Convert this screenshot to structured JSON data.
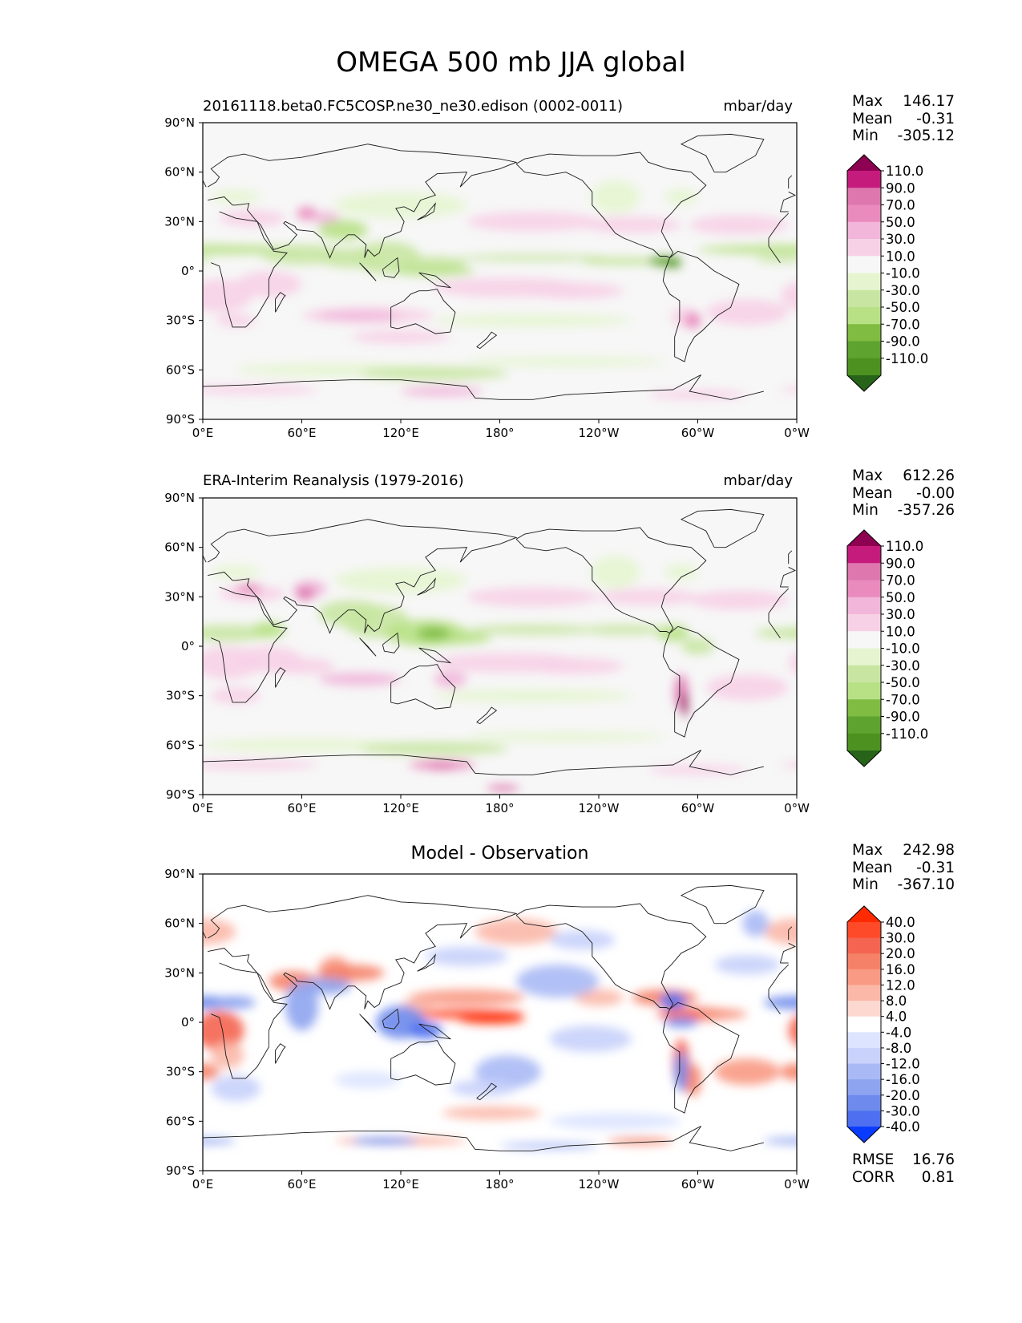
{
  "figure": {
    "title": "OMEGA 500 mb JJA global"
  },
  "chart_data": [
    {
      "type": "heatmap",
      "subtype": "global-map-contour",
      "left_title": "20161118.beta0.FC5COSP.ne30_ne30.edison (0002-0011)",
      "right_title": "mbar/day",
      "xticks": [
        "0°E",
        "60°E",
        "120°E",
        "180°",
        "120°W",
        "60°W",
        "0°W"
      ],
      "yticks": [
        "90°N",
        "60°N",
        "30°N",
        "0°",
        "30°S",
        "60°S",
        "90°S"
      ],
      "stats": [
        [
          "Max",
          "146.17"
        ],
        [
          "Mean",
          "-0.31"
        ],
        [
          "Min",
          "-305.12"
        ]
      ],
      "colorbar": {
        "levels": [
          "110.0",
          "90.0",
          "70.0",
          "50.0",
          "30.0",
          "10.0",
          "-10.0",
          "-30.0",
          "-50.0",
          "-70.0",
          "-90.0",
          "-110.0"
        ],
        "colors": [
          "#8e0152",
          "#c51b7d",
          "#de77ae",
          "#e98bbd",
          "#f1b6da",
          "#f7d2e7",
          "#f7f7f7",
          "#e6f5d0",
          "#c8e6a2",
          "#b8e186",
          "#7fbc41",
          "#5ea22f",
          "#4d9221",
          "#276419"
        ]
      }
    },
    {
      "type": "heatmap",
      "subtype": "global-map-contour",
      "left_title": "ERA-Interim Reanalysis (1979-2016)",
      "right_title": "mbar/day",
      "xticks": [
        "0°E",
        "60°E",
        "120°E",
        "180°",
        "120°W",
        "60°W",
        "0°W"
      ],
      "yticks": [
        "90°N",
        "60°N",
        "30°N",
        "0°",
        "30°S",
        "60°S",
        "90°S"
      ],
      "stats": [
        [
          "Max",
          "612.26"
        ],
        [
          "Mean",
          "-0.00"
        ],
        [
          "Min",
          "-357.26"
        ]
      ],
      "colorbar": {
        "levels": [
          "110.0",
          "90.0",
          "70.0",
          "50.0",
          "30.0",
          "10.0",
          "-10.0",
          "-30.0",
          "-50.0",
          "-70.0",
          "-90.0",
          "-110.0"
        ],
        "colors": [
          "#8e0152",
          "#c51b7d",
          "#de77ae",
          "#e98bbd",
          "#f1b6da",
          "#f7d2e7",
          "#f7f7f7",
          "#e6f5d0",
          "#c8e6a2",
          "#b8e186",
          "#7fbc41",
          "#5ea22f",
          "#4d9221",
          "#276419"
        ]
      }
    },
    {
      "type": "heatmap",
      "subtype": "global-map-contour",
      "center_title": "Model - Observation",
      "xticks": [
        "0°E",
        "60°E",
        "120°E",
        "180°",
        "120°W",
        "60°W",
        "0°W"
      ],
      "yticks": [
        "90°N",
        "60°N",
        "30°N",
        "0°",
        "30°S",
        "60°S",
        "90°S"
      ],
      "stats": [
        [
          "Max",
          "242.98"
        ],
        [
          "Mean",
          "-0.31"
        ],
        [
          "Min",
          "-367.10"
        ]
      ],
      "extra_stats": [
        [
          "RMSE",
          "16.76"
        ],
        [
          "CORR",
          "0.81"
        ]
      ],
      "colorbar": {
        "levels": [
          "40.0",
          "30.0",
          "20.0",
          "16.0",
          "12.0",
          "8.0",
          "4.0",
          "-4.0",
          "-8.0",
          "-12.0",
          "-16.0",
          "-20.0",
          "-30.0",
          "-40.0"
        ],
        "colors": [
          "#ff2a00",
          "#ff4a2a",
          "#f46450",
          "#f58268",
          "#f89a84",
          "#fbb8a8",
          "#fdd8d0",
          "#ffffff",
          "#dce4ff",
          "#c8d2fb",
          "#a9b9f5",
          "#8ea4f0",
          "#6d8aec",
          "#4d6ff0",
          "#0a3cff"
        ]
      }
    }
  ]
}
